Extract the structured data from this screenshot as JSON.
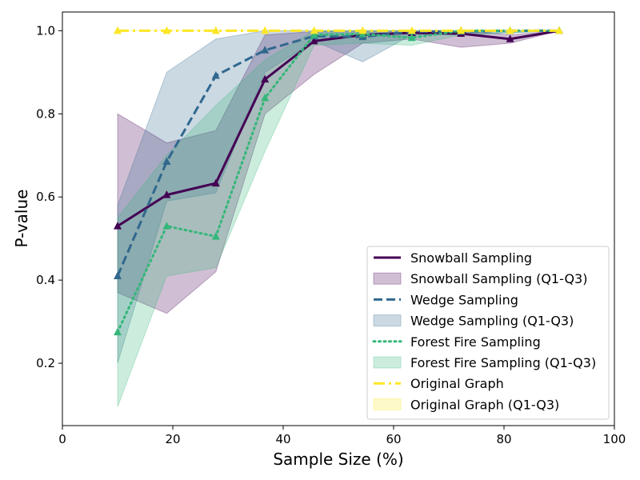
{
  "chart_data": {
    "type": "line",
    "xlabel": "Sample Size (%)",
    "ylabel": "P-value",
    "xlim": [
      0,
      100
    ],
    "ylim": [
      0.05,
      1.045
    ],
    "x_ticks": [
      0,
      20,
      40,
      60,
      80,
      100
    ],
    "y_ticks": [
      0.2,
      0.4,
      0.6,
      0.8,
      1.0
    ],
    "x_tick_labels": [
      "0",
      "20",
      "40",
      "60",
      "80",
      "100"
    ],
    "y_tick_labels": [
      "0.2",
      "0.4",
      "0.6",
      "0.8",
      "1.0"
    ],
    "grid": false,
    "legend_position": "lower-right",
    "x": [
      10,
      18.9,
      27.8,
      36.7,
      45.6,
      54.4,
      63.3,
      72.2,
      81.1,
      90
    ],
    "series": [
      {
        "name": "Snowball Sampling",
        "band_name": "Snowball Sampling (Q1-Q3)",
        "color": "#440154",
        "dash": "solid",
        "values": [
          0.53,
          0.605,
          0.633,
          0.883,
          0.975,
          0.99,
          0.995,
          0.993,
          0.98,
          1.0
        ],
        "q1": [
          0.37,
          0.32,
          0.42,
          0.8,
          0.895,
          0.97,
          0.98,
          0.96,
          0.97,
          1.0
        ],
        "q3": [
          0.8,
          0.73,
          0.76,
          0.99,
          0.998,
          1.0,
          1.0,
          1.0,
          0.99,
          1.0
        ]
      },
      {
        "name": "Wedge Sampling",
        "band_name": "Wedge Sampling (Q1-Q3)",
        "color": "#31688e",
        "dash": "dashed",
        "values": [
          0.41,
          0.685,
          0.892,
          0.953,
          0.987,
          0.985,
          0.998,
          0.998,
          1.0,
          1.0
        ],
        "q1": [
          0.2,
          0.59,
          0.61,
          0.9,
          0.975,
          0.925,
          0.99,
          0.99,
          0.995,
          1.0
        ],
        "q3": [
          0.58,
          0.9,
          0.98,
          1.0,
          1.0,
          1.0,
          1.0,
          1.0,
          1.0,
          1.0
        ]
      },
      {
        "name": "Forest Fire Sampling",
        "band_name": "Forest Fire Sampling (Q1-Q3)",
        "color": "#35b779",
        "dash": "dotted",
        "values": [
          0.275,
          0.53,
          0.505,
          0.838,
          0.99,
          0.992,
          0.983,
          1.0,
          1.0,
          1.0
        ],
        "q1": [
          0.095,
          0.41,
          0.43,
          0.71,
          0.965,
          0.97,
          0.965,
          0.99,
          0.995,
          1.0
        ],
        "q3": [
          0.55,
          0.7,
          0.82,
          0.93,
          1.0,
          1.0,
          1.0,
          1.0,
          1.0,
          1.0
        ]
      },
      {
        "name": "Original Graph",
        "band_name": "Original Graph (Q1-Q3)",
        "color": "#fde725",
        "dash": "dashdot",
        "values": [
          1.0,
          1.0,
          1.0,
          1.0,
          1.0,
          1.0,
          1.0,
          1.0,
          1.0,
          1.0
        ],
        "q1": [
          1.0,
          1.0,
          1.0,
          1.0,
          1.0,
          1.0,
          1.0,
          1.0,
          1.0,
          1.0
        ],
        "q3": [
          1.0,
          1.0,
          1.0,
          1.0,
          1.0,
          1.0,
          1.0,
          1.0,
          1.0,
          1.0
        ]
      }
    ]
  }
}
